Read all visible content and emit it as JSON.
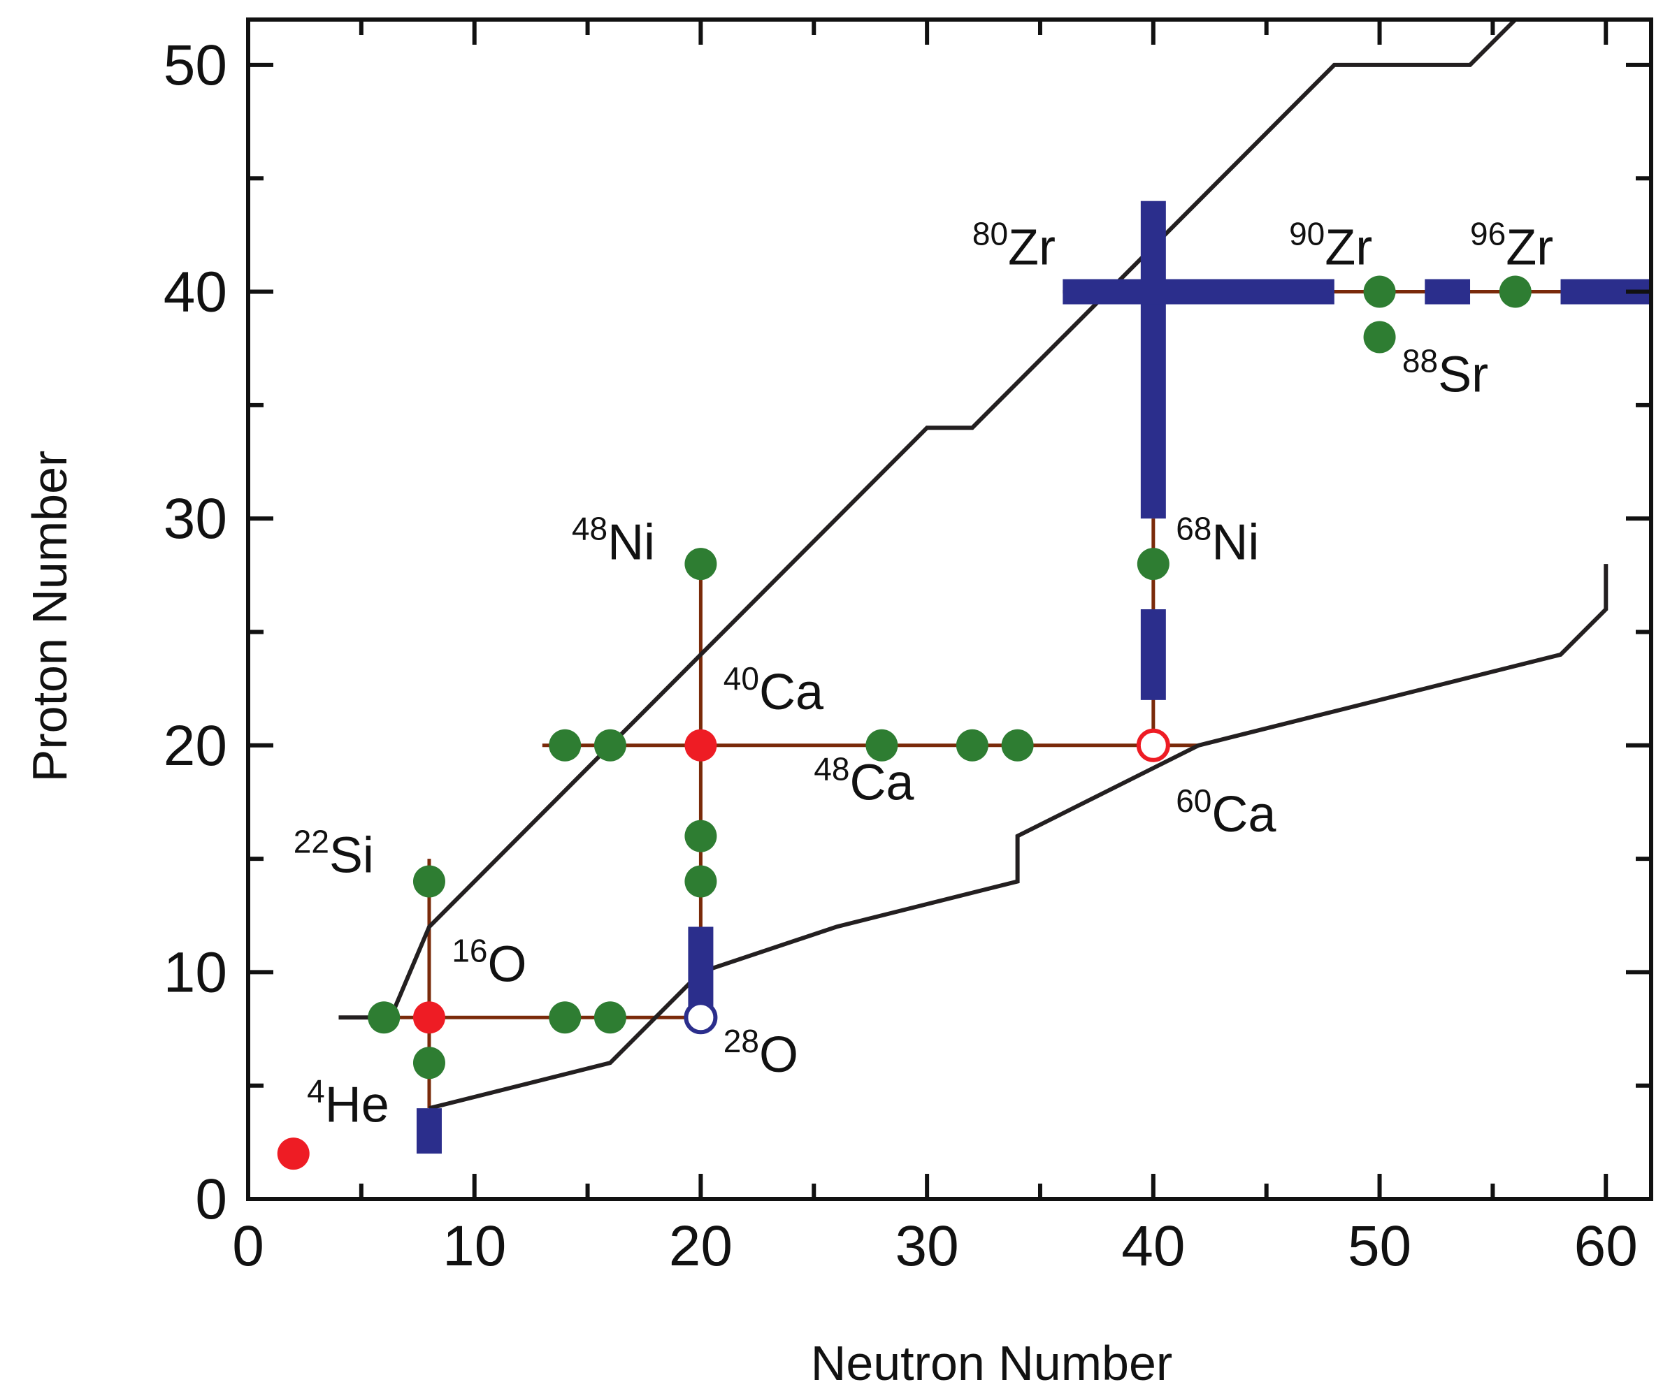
{
  "chart_data": {
    "type": "scatter",
    "title": "",
    "xlabel": "Neutron Number",
    "ylabel": "Proton Number",
    "xlim": [
      0,
      62
    ],
    "ylim": [
      0,
      52
    ],
    "x_ticks": [
      0,
      10,
      20,
      30,
      40,
      50,
      60
    ],
    "y_ticks": [
      0,
      10,
      20,
      30,
      40,
      50
    ],
    "colors": {
      "stable": "#2e7d32",
      "doubly_magic": "#ee1c24",
      "open_red": "#ee1c24",
      "open_blue": "#2b2e8c",
      "chain_line": "#7a2a0a",
      "shell_gap_bar": "#2b2e8c",
      "drip_line": "#231f20"
    },
    "series": [
      {
        "name": "stable-nuclei",
        "marker": "filled-circle",
        "points": [
          {
            "n": 6,
            "z": 8
          },
          {
            "n": 8,
            "z": 6
          },
          {
            "n": 8,
            "z": 14
          },
          {
            "n": 14,
            "z": 8
          },
          {
            "n": 16,
            "z": 8
          },
          {
            "n": 14,
            "z": 20
          },
          {
            "n": 16,
            "z": 20
          },
          {
            "n": 28,
            "z": 20
          },
          {
            "n": 32,
            "z": 20
          },
          {
            "n": 34,
            "z": 20
          },
          {
            "n": 20,
            "z": 14
          },
          {
            "n": 20,
            "z": 16
          },
          {
            "n": 20,
            "z": 28
          },
          {
            "n": 40,
            "z": 28
          },
          {
            "n": 50,
            "z": 40
          },
          {
            "n": 56,
            "z": 40
          },
          {
            "n": 50,
            "z": 38
          }
        ]
      },
      {
        "name": "doubly-magic",
        "marker": "filled-circle",
        "points": [
          {
            "n": 2,
            "z": 2
          },
          {
            "n": 8,
            "z": 8
          },
          {
            "n": 20,
            "z": 20
          }
        ]
      },
      {
        "name": "open-red",
        "marker": "open-circle",
        "points": [
          {
            "n": 40,
            "z": 20
          }
        ]
      },
      {
        "name": "open-blue",
        "marker": "open-circle",
        "points": [
          {
            "n": 20,
            "z": 8
          }
        ]
      }
    ],
    "chains": [
      {
        "name": "isotones-n8",
        "from": [
          8,
          4
        ],
        "to": [
          8,
          15
        ]
      },
      {
        "name": "isotopes-z8",
        "from": [
          4,
          8
        ],
        "to": [
          20,
          8
        ]
      },
      {
        "name": "isotones-n20",
        "from": [
          20,
          8
        ],
        "to": [
          20,
          28
        ]
      },
      {
        "name": "isotopes-z20",
        "from": [
          13,
          20
        ],
        "to": [
          42,
          20
        ]
      },
      {
        "name": "isotones-n40",
        "from": [
          40,
          20
        ],
        "to": [
          40,
          30
        ]
      },
      {
        "name": "isotopes-z40",
        "from": [
          36,
          40
        ],
        "to": [
          62,
          40
        ]
      }
    ],
    "bars": [
      {
        "orient": "v",
        "from": [
          8,
          2
        ],
        "to": [
          8,
          4
        ]
      },
      {
        "orient": "v",
        "from": [
          20,
          8
        ],
        "to": [
          20,
          12
        ]
      },
      {
        "orient": "v",
        "from": [
          40,
          22
        ],
        "to": [
          40,
          26
        ]
      },
      {
        "orient": "v",
        "from": [
          40,
          30
        ],
        "to": [
          40,
          44
        ]
      },
      {
        "orient": "h",
        "from": [
          36,
          40
        ],
        "to": [
          48,
          40
        ]
      },
      {
        "orient": "h",
        "from": [
          52,
          40
        ],
        "to": [
          54,
          40
        ]
      },
      {
        "orient": "h",
        "from": [
          58,
          40
        ],
        "to": [
          62,
          40
        ]
      }
    ],
    "drip_lines": [
      {
        "name": "proton-drip-line",
        "points": [
          [
            6.3,
            8
          ],
          [
            8,
            12
          ],
          [
            16,
            20
          ],
          [
            30,
            34
          ],
          [
            32,
            34
          ],
          [
            48,
            50
          ],
          [
            54,
            50
          ],
          [
            56,
            52
          ]
        ]
      },
      {
        "name": "neutron-drip-line",
        "points": [
          [
            8,
            4
          ],
          [
            16,
            6
          ],
          [
            20,
            10
          ],
          [
            26,
            12
          ],
          [
            34,
            14
          ],
          [
            34,
            16
          ],
          [
            42,
            20
          ],
          [
            58,
            24
          ],
          [
            60,
            26
          ],
          [
            60,
            28
          ]
        ]
      }
    ],
    "annotations": [
      {
        "name": "he-4",
        "mass": "4",
        "symbol": "He",
        "n": 2.6,
        "z": 3.4
      },
      {
        "name": "o-16",
        "mass": "16",
        "symbol": "O",
        "n": 9.0,
        "z": 9.6
      },
      {
        "name": "si-22",
        "mass": "22",
        "symbol": "Si",
        "n": 2.0,
        "z": 14.4
      },
      {
        "name": "o-28",
        "mass": "28",
        "symbol": "O",
        "n": 21.0,
        "z": 5.6
      },
      {
        "name": "ni-48",
        "mass": "48",
        "symbol": "Ni",
        "n": 14.3,
        "z": 28.2
      },
      {
        "name": "ca-40",
        "mass": "40",
        "symbol": "Ca",
        "n": 21.0,
        "z": 21.6
      },
      {
        "name": "ca-48",
        "mass": "48",
        "symbol": "Ca",
        "n": 25.0,
        "z": 17.6
      },
      {
        "name": "ca-60",
        "mass": "60",
        "symbol": "Ca",
        "n": 41.0,
        "z": 16.2
      },
      {
        "name": "ni-68",
        "mass": "68",
        "symbol": "Ni",
        "n": 41.0,
        "z": 28.2
      },
      {
        "name": "zr-80",
        "mass": "80",
        "symbol": "Zr",
        "n": 32.0,
        "z": 41.2
      },
      {
        "name": "zr-90",
        "mass": "90",
        "symbol": "Zr",
        "n": 46.0,
        "z": 41.2
      },
      {
        "name": "zr-96",
        "mass": "96",
        "symbol": "Zr",
        "n": 54.0,
        "z": 41.2
      },
      {
        "name": "sr-88",
        "mass": "88",
        "symbol": "Sr",
        "n": 51.0,
        "z": 35.6
      }
    ]
  }
}
